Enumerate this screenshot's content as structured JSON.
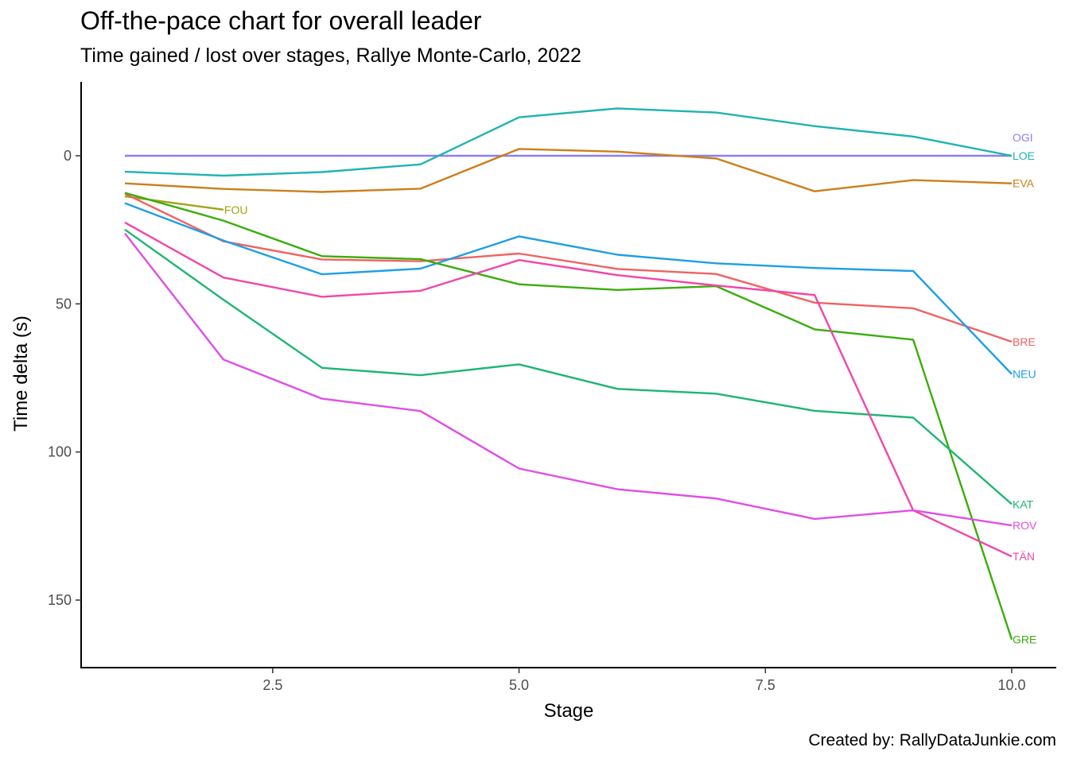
{
  "chart_data": {
    "type": "line",
    "title": "Off-the-pace chart for overall leader",
    "subtitle": "Time gained / lost over stages, Rallye Monte-Carlo, 2022",
    "caption": "Created by: RallyDataJunkie.com",
    "xlabel": "Stage",
    "ylabel": "Time delta (s)",
    "xlim": [
      0.6,
      10.45
    ],
    "ylim": [
      172,
      -24
    ],
    "y_reversed": true,
    "x_ticks": [
      2.5,
      5.0,
      7.5,
      10.0
    ],
    "x_tick_labels": [
      "2.5",
      "5.0",
      "7.5",
      "10.0"
    ],
    "y_ticks": [
      0,
      50,
      100,
      150
    ],
    "y_tick_labels": [
      "0",
      "50",
      "100",
      "150"
    ],
    "grid": false,
    "legend": "none (direct end labels)",
    "series": [
      {
        "name": "OGI",
        "color": "#8f7ef5",
        "x": [
          1,
          2,
          3,
          4,
          5,
          6,
          7,
          8,
          9,
          10
        ],
        "y": [
          0,
          0,
          0,
          0,
          0,
          0,
          0,
          0,
          0,
          0
        ]
      },
      {
        "name": "LOE",
        "color": "#1fb3b3",
        "x": [
          1,
          2,
          3,
          4,
          5,
          6,
          7,
          8,
          9,
          10
        ],
        "y": [
          5.4,
          6.7,
          5.5,
          2.9,
          -13,
          -16,
          -14.6,
          -10,
          -6.5,
          0
        ]
      },
      {
        "name": "EVA",
        "color": "#cc7f1a",
        "x": [
          1,
          2,
          3,
          4,
          5,
          6,
          7,
          8,
          9,
          10
        ],
        "y": [
          9.3,
          11.2,
          12.2,
          11.1,
          -2.3,
          -1.4,
          0.9,
          12,
          8.2,
          9.3
        ]
      },
      {
        "name": "FOU",
        "color": "#a3a314",
        "x": [
          1,
          2
        ],
        "y": [
          13.7,
          18.2
        ]
      },
      {
        "name": "BRE",
        "color": "#f06262",
        "x": [
          1,
          2,
          3,
          4,
          5,
          6,
          7,
          8,
          9,
          10
        ],
        "y": [
          12.8,
          28.9,
          35,
          35.6,
          33,
          38.2,
          39.9,
          49.6,
          51.5,
          62.8
        ]
      },
      {
        "name": "NEU",
        "color": "#1f9ee6",
        "x": [
          1,
          2,
          3,
          4,
          5,
          6,
          7,
          8,
          9,
          10
        ],
        "y": [
          16,
          28.6,
          40,
          38.1,
          27.2,
          33.4,
          36.3,
          37.9,
          38.9,
          73.7
        ]
      },
      {
        "name": "GRE",
        "color": "#3aad0c",
        "x": [
          1,
          2,
          3,
          4,
          5,
          6,
          7,
          8,
          9,
          10
        ],
        "y": [
          12.5,
          21.9,
          33.9,
          34.9,
          43.4,
          45.3,
          44,
          58.6,
          62.1,
          163.3
        ]
      },
      {
        "name": "KAT",
        "color": "#1eb573",
        "x": [
          1,
          2,
          3,
          4,
          5,
          6,
          7,
          8,
          9,
          10
        ],
        "y": [
          24.9,
          48.6,
          71.6,
          74.1,
          70.4,
          78.7,
          80.3,
          86.1,
          88.4,
          117.6
        ]
      },
      {
        "name": "TÄN",
        "color": "#f246a8",
        "x": [
          1,
          2,
          3,
          4,
          5,
          6,
          7,
          8,
          9,
          10
        ],
        "y": [
          22.5,
          41.1,
          47.6,
          45.6,
          35.2,
          40.3,
          43.8,
          47,
          119.7,
          135.3
        ]
      },
      {
        "name": "ROV",
        "color": "#e04ee6",
        "x": [
          1,
          2,
          3,
          4,
          5,
          6,
          7,
          8,
          9,
          10
        ],
        "y": [
          26.2,
          68.8,
          82,
          86.2,
          105.6,
          112.6,
          115.7,
          122.6,
          119.7,
          124.8
        ]
      }
    ]
  }
}
